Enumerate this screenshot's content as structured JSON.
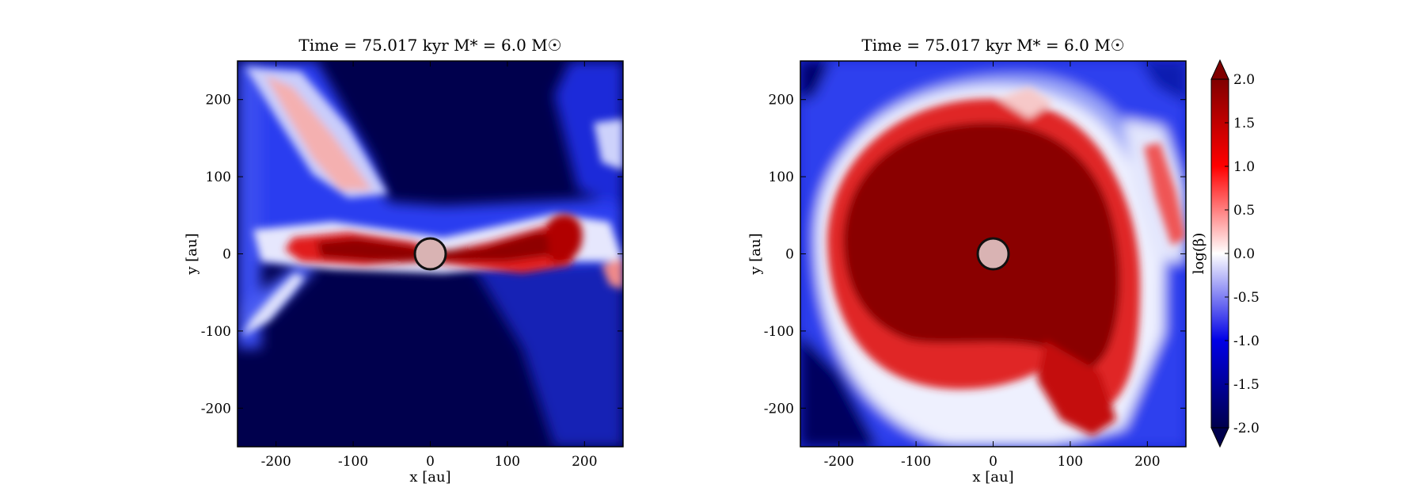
{
  "chart_data": [
    {
      "type": "heatmap",
      "title": "Time = 75.017 kyr    M$_*$ = 6.0 M$_\\odot$",
      "title_text": "Time = 75.017 kyr    M* = 6.0 M☉",
      "xlabel": "x [au]",
      "ylabel": "y [au]",
      "xlim": [
        -250,
        250
      ],
      "ylim": [
        -250,
        250
      ],
      "xticks": [
        -200,
        -100,
        0,
        100,
        200
      ],
      "yticks": [
        -200,
        -100,
        0,
        100,
        200
      ],
      "xtick_labels": [
        "-200",
        "-100",
        "0",
        "100",
        "200"
      ],
      "ytick_labels": [
        "-200",
        "-100",
        "0",
        "100",
        "200"
      ],
      "star_marker": {
        "x": 0,
        "y": 0,
        "radius": 20,
        "color": "#d9b3b3"
      },
      "description_values": {
        "background_logbeta": -2.0,
        "disk_logbeta": 2.0,
        "disk_extent_x": [
          -160,
          190
        ],
        "disk_extent_y": [
          -35,
          45
        ]
      }
    },
    {
      "type": "heatmap",
      "title": "Time = 75.017 kyr    M$_*$ = 6.0 M$_\\odot$",
      "title_text": "Time = 75.017 kyr    M* = 6.0 M☉",
      "xlabel": "x [au]",
      "ylabel": "y [au]",
      "xlim": [
        -250,
        250
      ],
      "ylim": [
        -250,
        250
      ],
      "xticks": [
        -200,
        -100,
        0,
        100,
        200
      ],
      "yticks": [
        -200,
        -100,
        0,
        100,
        200
      ],
      "xtick_labels": [
        "-200",
        "-100",
        "0",
        "100",
        "200"
      ],
      "ytick_labels": [
        "-200",
        "-100",
        "0",
        "100",
        "200"
      ],
      "star_marker": {
        "x": 0,
        "y": 0,
        "radius": 20,
        "color": "#d9b3b3"
      },
      "description_values": {
        "background_logbeta": -1.0,
        "disk_logbeta": 2.0,
        "disk_extent_x": [
          -210,
          190
        ],
        "disk_extent_y": [
          -200,
          190
        ]
      }
    }
  ],
  "colorbar": {
    "label": "log(β)",
    "cmap": "seismic",
    "range": [
      -2.0,
      2.0
    ],
    "ticks": [
      2.0,
      1.5,
      1.0,
      0.5,
      0.0,
      -0.5,
      -1.0,
      -1.5,
      -2.0
    ],
    "tick_labels": [
      "2.0",
      "1.5",
      "1.0",
      "0.5",
      "0.0",
      "-0.5",
      "-1.0",
      "-1.5",
      "-2.0"
    ],
    "extend": "both",
    "colors": {
      "min": "#00004d",
      "mid": "#ffffff",
      "max": "#800000"
    }
  }
}
